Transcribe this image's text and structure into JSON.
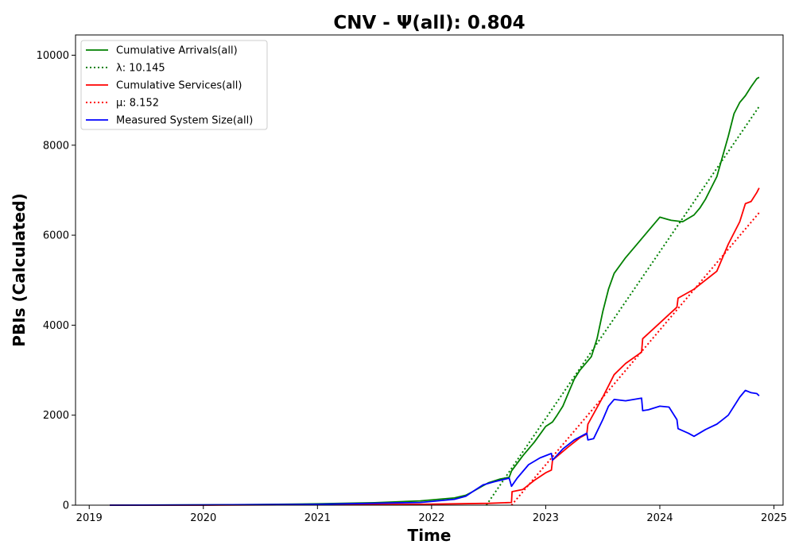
{
  "chart_data": {
    "type": "line",
    "title": "CNV -  Ψ(all): 0.804",
    "xlabel": "Time",
    "ylabel": "PBIs (Calculated)",
    "xlim": [
      2018.88,
      2025.08
    ],
    "ylim": [
      0,
      10450
    ],
    "x_ticks": [
      2019,
      2020,
      2021,
      2022,
      2023,
      2024,
      2025
    ],
    "x_tick_labels": [
      "2019",
      "2020",
      "2021",
      "2022",
      "2023",
      "2024",
      "2025"
    ],
    "y_ticks": [
      0,
      2000,
      4000,
      6000,
      8000,
      10000
    ],
    "y_tick_labels": [
      "0",
      "2000",
      "4000",
      "6000",
      "8000",
      "10000"
    ],
    "grid": false,
    "legend_position": "top-left",
    "series": [
      {
        "name": "Cumulative Arrivals(all)",
        "style": "solid",
        "color": "#008000",
        "x": [
          2019.18,
          2019.5,
          2020.0,
          2020.5,
          2021.0,
          2021.5,
          2021.9,
          2022.2,
          2022.3,
          2022.36,
          2022.45,
          2022.5,
          2022.6,
          2022.68,
          2022.7,
          2022.8,
          2022.9,
          2023.0,
          2023.06,
          2023.1,
          2023.15,
          2023.2,
          2023.25,
          2023.3,
          2023.35,
          2023.4,
          2023.45,
          2023.5,
          2023.55,
          2023.6,
          2023.7,
          2023.8,
          2023.9,
          2024.0,
          2024.07,
          2024.1,
          2024.2,
          2024.3,
          2024.35,
          2024.4,
          2024.5,
          2024.6,
          2024.65,
          2024.7,
          2024.75,
          2024.8,
          2024.85,
          2024.87
        ],
        "y": [
          0,
          2,
          5,
          15,
          30,
          55,
          95,
          160,
          220,
          300,
          430,
          500,
          580,
          620,
          760,
          1100,
          1400,
          1750,
          1850,
          2000,
          2200,
          2500,
          2800,
          3000,
          3150,
          3300,
          3700,
          4300,
          4800,
          5150,
          5500,
          5800,
          6100,
          6400,
          6350,
          6330,
          6300,
          6450,
          6600,
          6800,
          7300,
          8200,
          8700,
          8950,
          9100,
          9300,
          9480,
          9510
        ]
      },
      {
        "name": "λ: 10.145",
        "style": "dotted",
        "color": "#008000",
        "x": [
          2022.48,
          2024.87
        ],
        "y": [
          0,
          8860
        ]
      },
      {
        "name": "Cumulative Services(all)",
        "style": "solid",
        "color": "#ff0000",
        "x": [
          2019.18,
          2020.0,
          2021.0,
          2021.9,
          2022.2,
          2022.5,
          2022.7,
          2022.705,
          2022.8,
          2022.9,
          2023.0,
          2023.05,
          2023.06,
          2023.2,
          2023.3,
          2023.36,
          2023.37,
          2023.5,
          2023.6,
          2023.7,
          2023.84,
          2023.85,
          2024.0,
          2024.15,
          2024.16,
          2024.3,
          2024.5,
          2024.6,
          2024.7,
          2024.75,
          2024.8,
          2024.85,
          2024.87
        ],
        "y": [
          0,
          0,
          10,
          20,
          30,
          40,
          60,
          300,
          350,
          550,
          720,
          780,
          1000,
          1300,
          1500,
          1580,
          1800,
          2400,
          2900,
          3150,
          3400,
          3700,
          4050,
          4400,
          4600,
          4800,
          5200,
          5800,
          6300,
          6700,
          6750,
          6950,
          7050
        ]
      },
      {
        "name": "μ: 8.152",
        "style": "dotted",
        "color": "#ff0000",
        "x": [
          2022.7,
          2024.87
        ],
        "y": [
          0,
          6500
        ]
      },
      {
        "name": "Measured System Size(all)",
        "style": "solid",
        "color": "#0000ff",
        "x": [
          2019.18,
          2020.0,
          2021.0,
          2021.9,
          2022.2,
          2022.3,
          2022.36,
          2022.45,
          2022.55,
          2022.68,
          2022.7,
          2022.75,
          2022.85,
          2022.95,
          2023.05,
          2023.06,
          2023.15,
          2023.25,
          2023.36,
          2023.37,
          2023.42,
          2023.5,
          2023.55,
          2023.6,
          2023.7,
          2023.84,
          2023.85,
          2023.9,
          2024.0,
          2024.08,
          2024.15,
          2024.16,
          2024.25,
          2024.3,
          2024.4,
          2024.5,
          2024.55,
          2024.6,
          2024.65,
          2024.7,
          2024.75,
          2024.8,
          2024.85,
          2024.87
        ],
        "y": [
          0,
          5,
          20,
          60,
          130,
          200,
          300,
          450,
          520,
          600,
          420,
          600,
          900,
          1050,
          1150,
          1000,
          1250,
          1450,
          1600,
          1450,
          1480,
          1900,
          2200,
          2350,
          2320,
          2380,
          2100,
          2120,
          2200,
          2180,
          1900,
          1700,
          1600,
          1530,
          1680,
          1800,
          1900,
          2000,
          2200,
          2400,
          2550,
          2500,
          2480,
          2430
        ]
      }
    ]
  }
}
